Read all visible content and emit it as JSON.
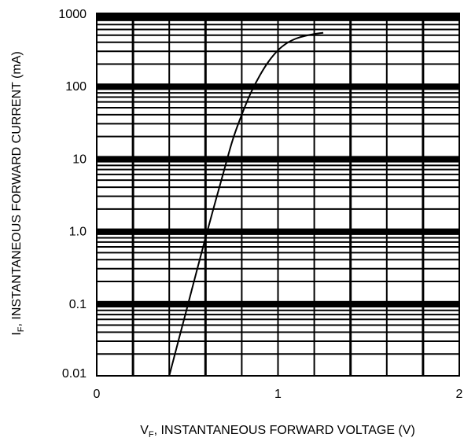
{
  "chart_data": {
    "type": "line",
    "title": "",
    "xlabel": {
      "symbol": "V",
      "subscript": "F",
      "text": ", INSTANTANEOUS FORWARD VOLTAGE (V)"
    },
    "ylabel": {
      "symbol": "I",
      "subscript": "F",
      "text": ", INSTANTANEOUS FORWARD CURRENT (mA)"
    },
    "xlim": [
      0,
      2
    ],
    "ylim": [
      0.01,
      1000
    ],
    "y_scale": "log",
    "grid": true,
    "x_ticks": [
      {
        "value": 0,
        "label": "0"
      },
      {
        "value": 1,
        "label": "1"
      },
      {
        "value": 2,
        "label": "2"
      }
    ],
    "y_ticks": [
      {
        "value": 0.01,
        "label": "0.01"
      },
      {
        "value": 0.1,
        "label": "0.1"
      },
      {
        "value": 1,
        "label": "1.0"
      },
      {
        "value": 10,
        "label": "10"
      },
      {
        "value": 100,
        "label": "100"
      },
      {
        "value": 1000,
        "label": "1000"
      }
    ],
    "series": [
      {
        "x": [
          0.4,
          0.45,
          0.5,
          0.55,
          0.6,
          0.65,
          0.7,
          0.75,
          0.8,
          0.85,
          0.9,
          0.95,
          1.0,
          1.05,
          1.1,
          1.15,
          1.2,
          1.25
        ],
        "y": [
          0.01,
          0.03,
          0.09,
          0.27,
          0.8,
          2.3,
          6.5,
          18,
          40,
          80,
          140,
          220,
          310,
          390,
          450,
          490,
          520,
          540
        ]
      }
    ]
  }
}
